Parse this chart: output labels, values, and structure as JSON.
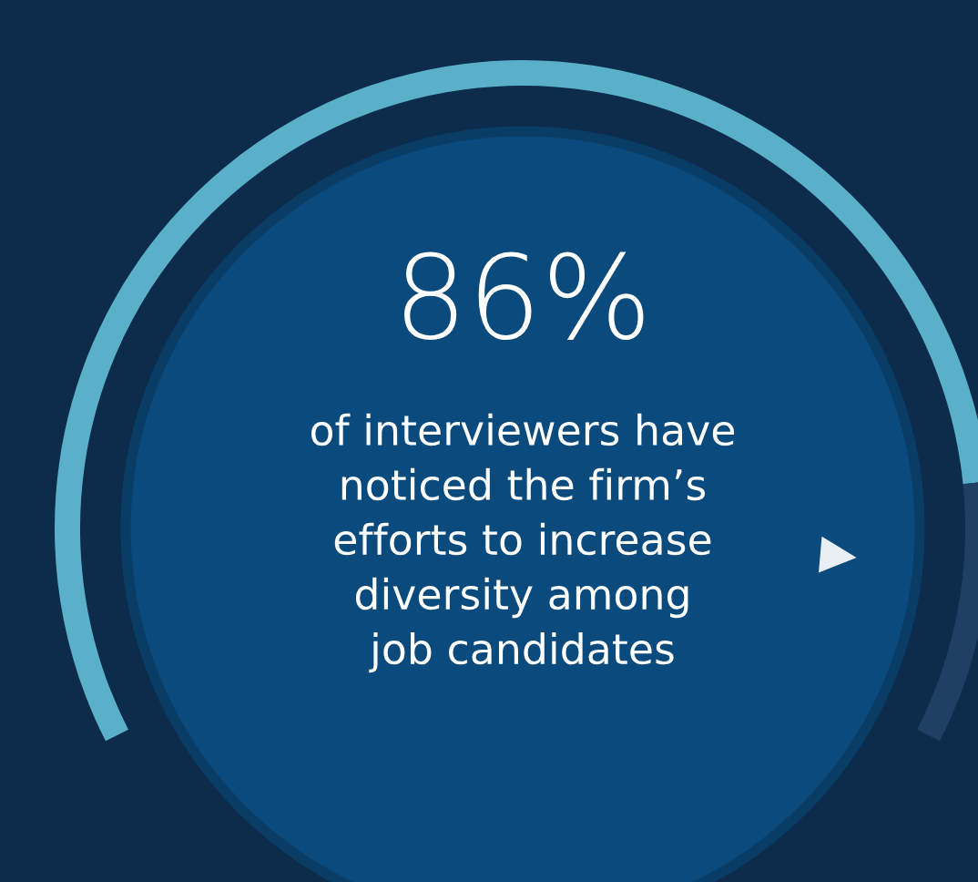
{
  "chart_data": {
    "type": "donut",
    "title": "86%",
    "subtitle": "of interviewers have\nnoticed the firm’s\nefforts to increase\ndiversity among\njob candidates",
    "categories": [
      null,
      null
    ],
    "values": [
      86,
      14
    ],
    "colors": [
      "#5bb0c9",
      "#1f3f63"
    ]
  }
}
